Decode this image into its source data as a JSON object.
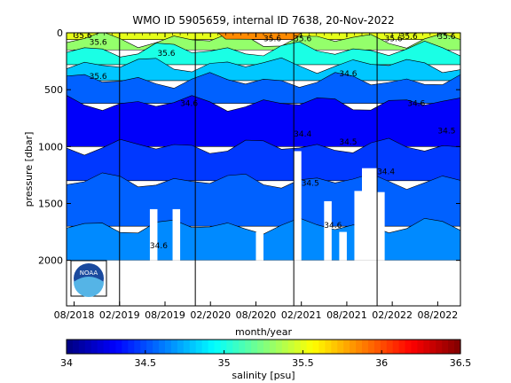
{
  "chart_data": {
    "type": "heatmap",
    "title": "WMO ID 5905659, internal ID 7638, 20-Nov-2022",
    "xlabel": "month/year",
    "ylabel": "pressure [dbar]",
    "x_ticks": [
      "08/2018",
      "02/2019",
      "08/2019",
      "02/2020",
      "08/2020",
      "02/2021",
      "08/2021",
      "02/2022",
      "08/2022"
    ],
    "y_ticks": [
      "0",
      "500",
      "1000",
      "1500",
      "2000"
    ],
    "y_tick_values": [
      0,
      500,
      1000,
      1500,
      2000
    ],
    "xlim": [
      "2018-07",
      "2022-11"
    ],
    "ylim": [
      2400,
      0
    ],
    "y_reversed": true,
    "colorbar": {
      "label": "salinity [psu]",
      "ticks": [
        "34",
        "34.5",
        "35",
        "35.5",
        "36",
        "36.5"
      ],
      "tick_values": [
        34,
        34.5,
        35,
        35.5,
        36,
        36.5
      ],
      "range": [
        34,
        36.5
      ],
      "colormap": "jet"
    },
    "profile_depth_max": 2000,
    "vertical_reference_lines": [
      "2019-02",
      "2019-12",
      "2021-01",
      "2021-12"
    ],
    "salinity_layers": [
      {
        "top": 0,
        "bottom": 60,
        "value": 35.5
      },
      {
        "top": 60,
        "bottom": 150,
        "value": 35.3
      },
      {
        "top": 150,
        "bottom": 280,
        "value": 35.0
      },
      {
        "top": 280,
        "bottom": 420,
        "value": 34.8
      },
      {
        "top": 420,
        "bottom": 620,
        "value": 34.55
      },
      {
        "top": 620,
        "bottom": 1000,
        "value": 34.3
      },
      {
        "top": 1000,
        "bottom": 1300,
        "value": 34.45
      },
      {
        "top": 1300,
        "bottom": 1700,
        "value": 34.55
      },
      {
        "top": 1700,
        "bottom": 2000,
        "value": 34.65
      }
    ],
    "contour_labels": [
      {
        "text": "35.6",
        "x": "2018-10",
        "p": 80
      },
      {
        "text": "35.6",
        "x": "2018-08",
        "p": 25
      },
      {
        "text": "35.6",
        "x": "2019-07",
        "p": 180
      },
      {
        "text": "35.6",
        "x": "2020-09",
        "p": 50
      },
      {
        "text": "35.6",
        "x": "2021-01",
        "p": 50
      },
      {
        "text": "35.6",
        "x": "2022-01",
        "p": 50
      },
      {
        "text": "35.6",
        "x": "2022-03",
        "p": 30
      },
      {
        "text": "35.6",
        "x": "2022-08",
        "p": 30
      },
      {
        "text": "35.6",
        "x": "2018-10",
        "p": 380
      },
      {
        "text": "34.6",
        "x": "2019-10",
        "p": 620
      },
      {
        "text": "34.6",
        "x": "2021-07",
        "p": 360
      },
      {
        "text": "34.6",
        "x": "2022-04",
        "p": 620
      },
      {
        "text": "34.4",
        "x": "2021-01",
        "p": 890
      },
      {
        "text": "34.5",
        "x": "2021-07",
        "p": 960
      },
      {
        "text": "34.5",
        "x": "2022-08",
        "p": 860
      },
      {
        "text": "34.5",
        "x": "2021-02",
        "p": 1320
      },
      {
        "text": "34.4",
        "x": "2021-12",
        "p": 1220
      },
      {
        "text": "34.6",
        "x": "2021-05",
        "p": 1690
      },
      {
        "text": "34.6",
        "x": "2019-06",
        "p": 1870
      }
    ],
    "gaps": [
      {
        "x0": "2019-06",
        "x1": "2019-07",
        "p_top": 1550
      },
      {
        "x0": "2019-09",
        "x1": "2019-10",
        "p_top": 1550
      },
      {
        "x0": "2020-08",
        "x1": "2020-09",
        "p_top": 1750
      },
      {
        "x0": "2021-01",
        "x1": "2021-02",
        "p_top": 1040
      },
      {
        "x0": "2021-05",
        "x1": "2021-06",
        "p_top": 1480
      },
      {
        "x0": "2021-07",
        "x1": "2021-08",
        "p_top": 1750
      },
      {
        "x0": "2021-09",
        "x1": "2021-10",
        "p_top": 1390
      },
      {
        "x0": "2021-10",
        "x1": "2021-12",
        "p_top": 1190
      },
      {
        "x0": "2021-12",
        "x1": "2022-01",
        "p_top": 1400
      }
    ]
  },
  "logo": {
    "name": "noaa-logo",
    "text": "NOAA"
  }
}
